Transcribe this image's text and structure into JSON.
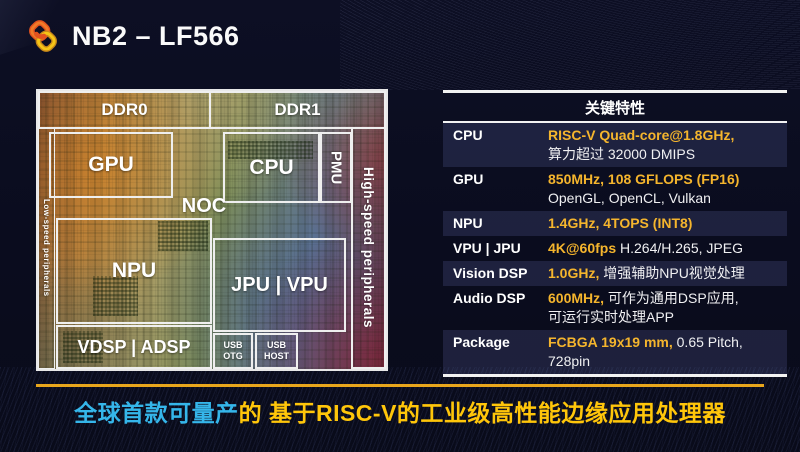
{
  "header": {
    "logo_icon": "chain-link-logo",
    "title": "NB2 – LF566"
  },
  "die": {
    "blocks": {
      "ddr0": "DDR0",
      "ddr1": "DDR1",
      "low_speed": "Low-speed peripherals",
      "high_speed": "High-speed peripherals",
      "gpu": "GPU",
      "cpu": "CPU",
      "pmu": "PMU",
      "noc": "NOC",
      "npu": "NPU",
      "jpu_vpu": "JPU | VPU",
      "vdsp_adsp": "VDSP | ADSP",
      "usb_otg": "USB OTG",
      "usb_host": "USB HOST"
    }
  },
  "spec_table": {
    "title": "关键特性",
    "rows": [
      {
        "label": "CPU",
        "segments": [
          {
            "t": "RISC-V Quad-core@1.8GHz,",
            "a": true
          },
          {
            "br": true
          },
          {
            "t": "算力超过 32000 DMIPS"
          }
        ]
      },
      {
        "label": "GPU",
        "segments": [
          {
            "t": "850MHz, 108 GFLOPS (FP16)",
            "a": true
          },
          {
            "br": true
          },
          {
            "t": "OpenGL, OpenCL, Vulkan"
          }
        ]
      },
      {
        "label": "NPU",
        "segments": [
          {
            "t": "1.4GHz, 4TOPS (INT8)",
            "a": true
          }
        ]
      },
      {
        "label": "VPU | JPU",
        "segments": [
          {
            "t": "4K@60fps",
            "a": true
          },
          {
            "t": " H.264/H.265, JPEG"
          }
        ]
      },
      {
        "label": "Vision DSP",
        "segments": [
          {
            "t": "1.0GHz,",
            "a": true
          },
          {
            "t": " 增强辅助NPU视觉处理"
          }
        ]
      },
      {
        "label": "Audio DSP",
        "segments": [
          {
            "t": "600MHz,",
            "a": true
          },
          {
            "t": " 可作为通用DSP应用,"
          },
          {
            "br": true
          },
          {
            "t": "可运行实时处理APP"
          }
        ]
      },
      {
        "label": "Package",
        "segments": [
          {
            "t": "FCBGA 19x19 mm,",
            "a": true
          },
          {
            "t": " 0.65 Pitch,"
          },
          {
            "br": true
          },
          {
            "t": "728pin"
          }
        ]
      }
    ]
  },
  "banner": {
    "part1": "全球首款可量产",
    "part2": "的 基于RISC-V的工业级高性能边缘应用处理器"
  },
  "colors": {
    "accent_yellow": "#f5b52d",
    "banner_cyan": "#35b6ea",
    "banner_gold": "#ffc60a",
    "rule_yellow": "#e8a61c"
  }
}
